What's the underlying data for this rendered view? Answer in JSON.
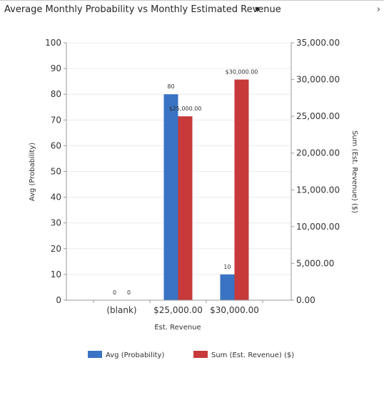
{
  "header": {
    "title": "Average Monthly Probability vs Monthly Estimated Revenue",
    "dropdown_icon": "caret-down-icon",
    "expand_icon": "chevron-right-icon"
  },
  "chart_data": {
    "type": "bar",
    "categories": [
      "(blank)",
      "$25,000.00",
      "$30,000.00"
    ],
    "xlabel": "Est. Revenue",
    "ylabel": "Avg (Probability)",
    "y2label": "Sum (Est. Revenue) ($)",
    "ylim": [
      0,
      100
    ],
    "y2lim": [
      0,
      35000
    ],
    "yticks": [
      "0",
      "10",
      "20",
      "30",
      "40",
      "50",
      "60",
      "70",
      "80",
      "90",
      "100"
    ],
    "y2ticks": [
      "0.00",
      "5,000.00",
      "10,000.00",
      "15,000.00",
      "20,000.00",
      "25,000.00",
      "30,000.00",
      "35,000.00"
    ],
    "grid": true,
    "legend_position": "bottom",
    "series": [
      {
        "name": "Avg (Probability)",
        "axis": "left",
        "color": "#3a73c4",
        "values": [
          0,
          80,
          10
        ],
        "labels": [
          "0",
          "80",
          "10"
        ]
      },
      {
        "name": "Sum (Est. Revenue) ($)",
        "axis": "right",
        "color": "#c7393a",
        "values": [
          0,
          25000,
          30000
        ],
        "labels": [
          "0",
          "$25,000.00",
          "$30,000.00"
        ]
      }
    ]
  }
}
